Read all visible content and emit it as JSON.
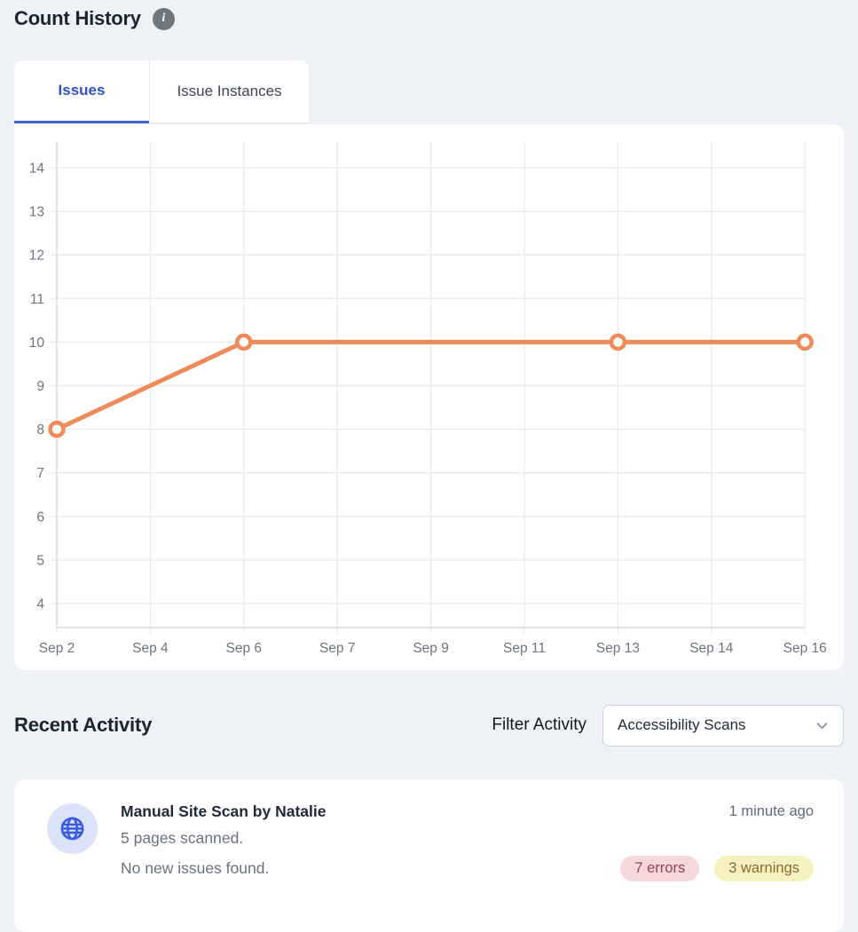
{
  "header": {
    "title": "Count History",
    "info_glyph": "i"
  },
  "tabs": [
    {
      "label": "Issues",
      "active": true
    },
    {
      "label": "Issue Instances",
      "active": false
    }
  ],
  "chart_data": {
    "type": "line",
    "title": "",
    "xlabel": "",
    "ylabel": "",
    "categories": [
      "Sep 2",
      "Sep 4",
      "Sep 6",
      "Sep 7",
      "Sep 9",
      "Sep 11",
      "Sep 13",
      "Sep 14",
      "Sep 16"
    ],
    "y_ticks": [
      4,
      5,
      6,
      7,
      8,
      9,
      10,
      11,
      12,
      13,
      14
    ],
    "ylim": [
      3.4,
      14.6
    ],
    "grid": true,
    "legend": "none",
    "marker": "open-circle",
    "series": [
      {
        "name": "Issues",
        "color": "#ef8a5a",
        "points": [
          {
            "x": "Sep 2",
            "y": 8
          },
          {
            "x": "Sep 6",
            "y": 10
          },
          {
            "x": "Sep 13",
            "y": 10
          },
          {
            "x": "Sep 16",
            "y": 10
          }
        ]
      }
    ]
  },
  "recent_activity": {
    "title": "Recent Activity",
    "filter_label": "Filter Activity",
    "filter_value": "Accessibility Scans",
    "items": [
      {
        "icon": "globe",
        "title": "Manual Site Scan by Natalie",
        "line1": "5 pages scanned.",
        "line2": "No new issues found.",
        "time": "1 minute ago",
        "badges": [
          {
            "label": "7 errors",
            "type": "error",
            "bg": "#f6d8da",
            "color": "#99434e"
          },
          {
            "label": "3 warnings",
            "type": "warning",
            "bg": "#f6f2c0",
            "color": "#8a6c33"
          }
        ]
      }
    ]
  },
  "colors": {
    "page_bg": "#eef1f5",
    "card_bg": "#ffffff",
    "accent_blue": "#2b51c6",
    "tab_underline": "#4466d8",
    "line_orange": "#ef8a5a",
    "gridline": "#e9eaee",
    "axis_line": "#d8dbe1",
    "tick_label": "#6e7580",
    "avatar_bg": "#dbe3fb",
    "globe_blue": "#3a5ae0"
  }
}
